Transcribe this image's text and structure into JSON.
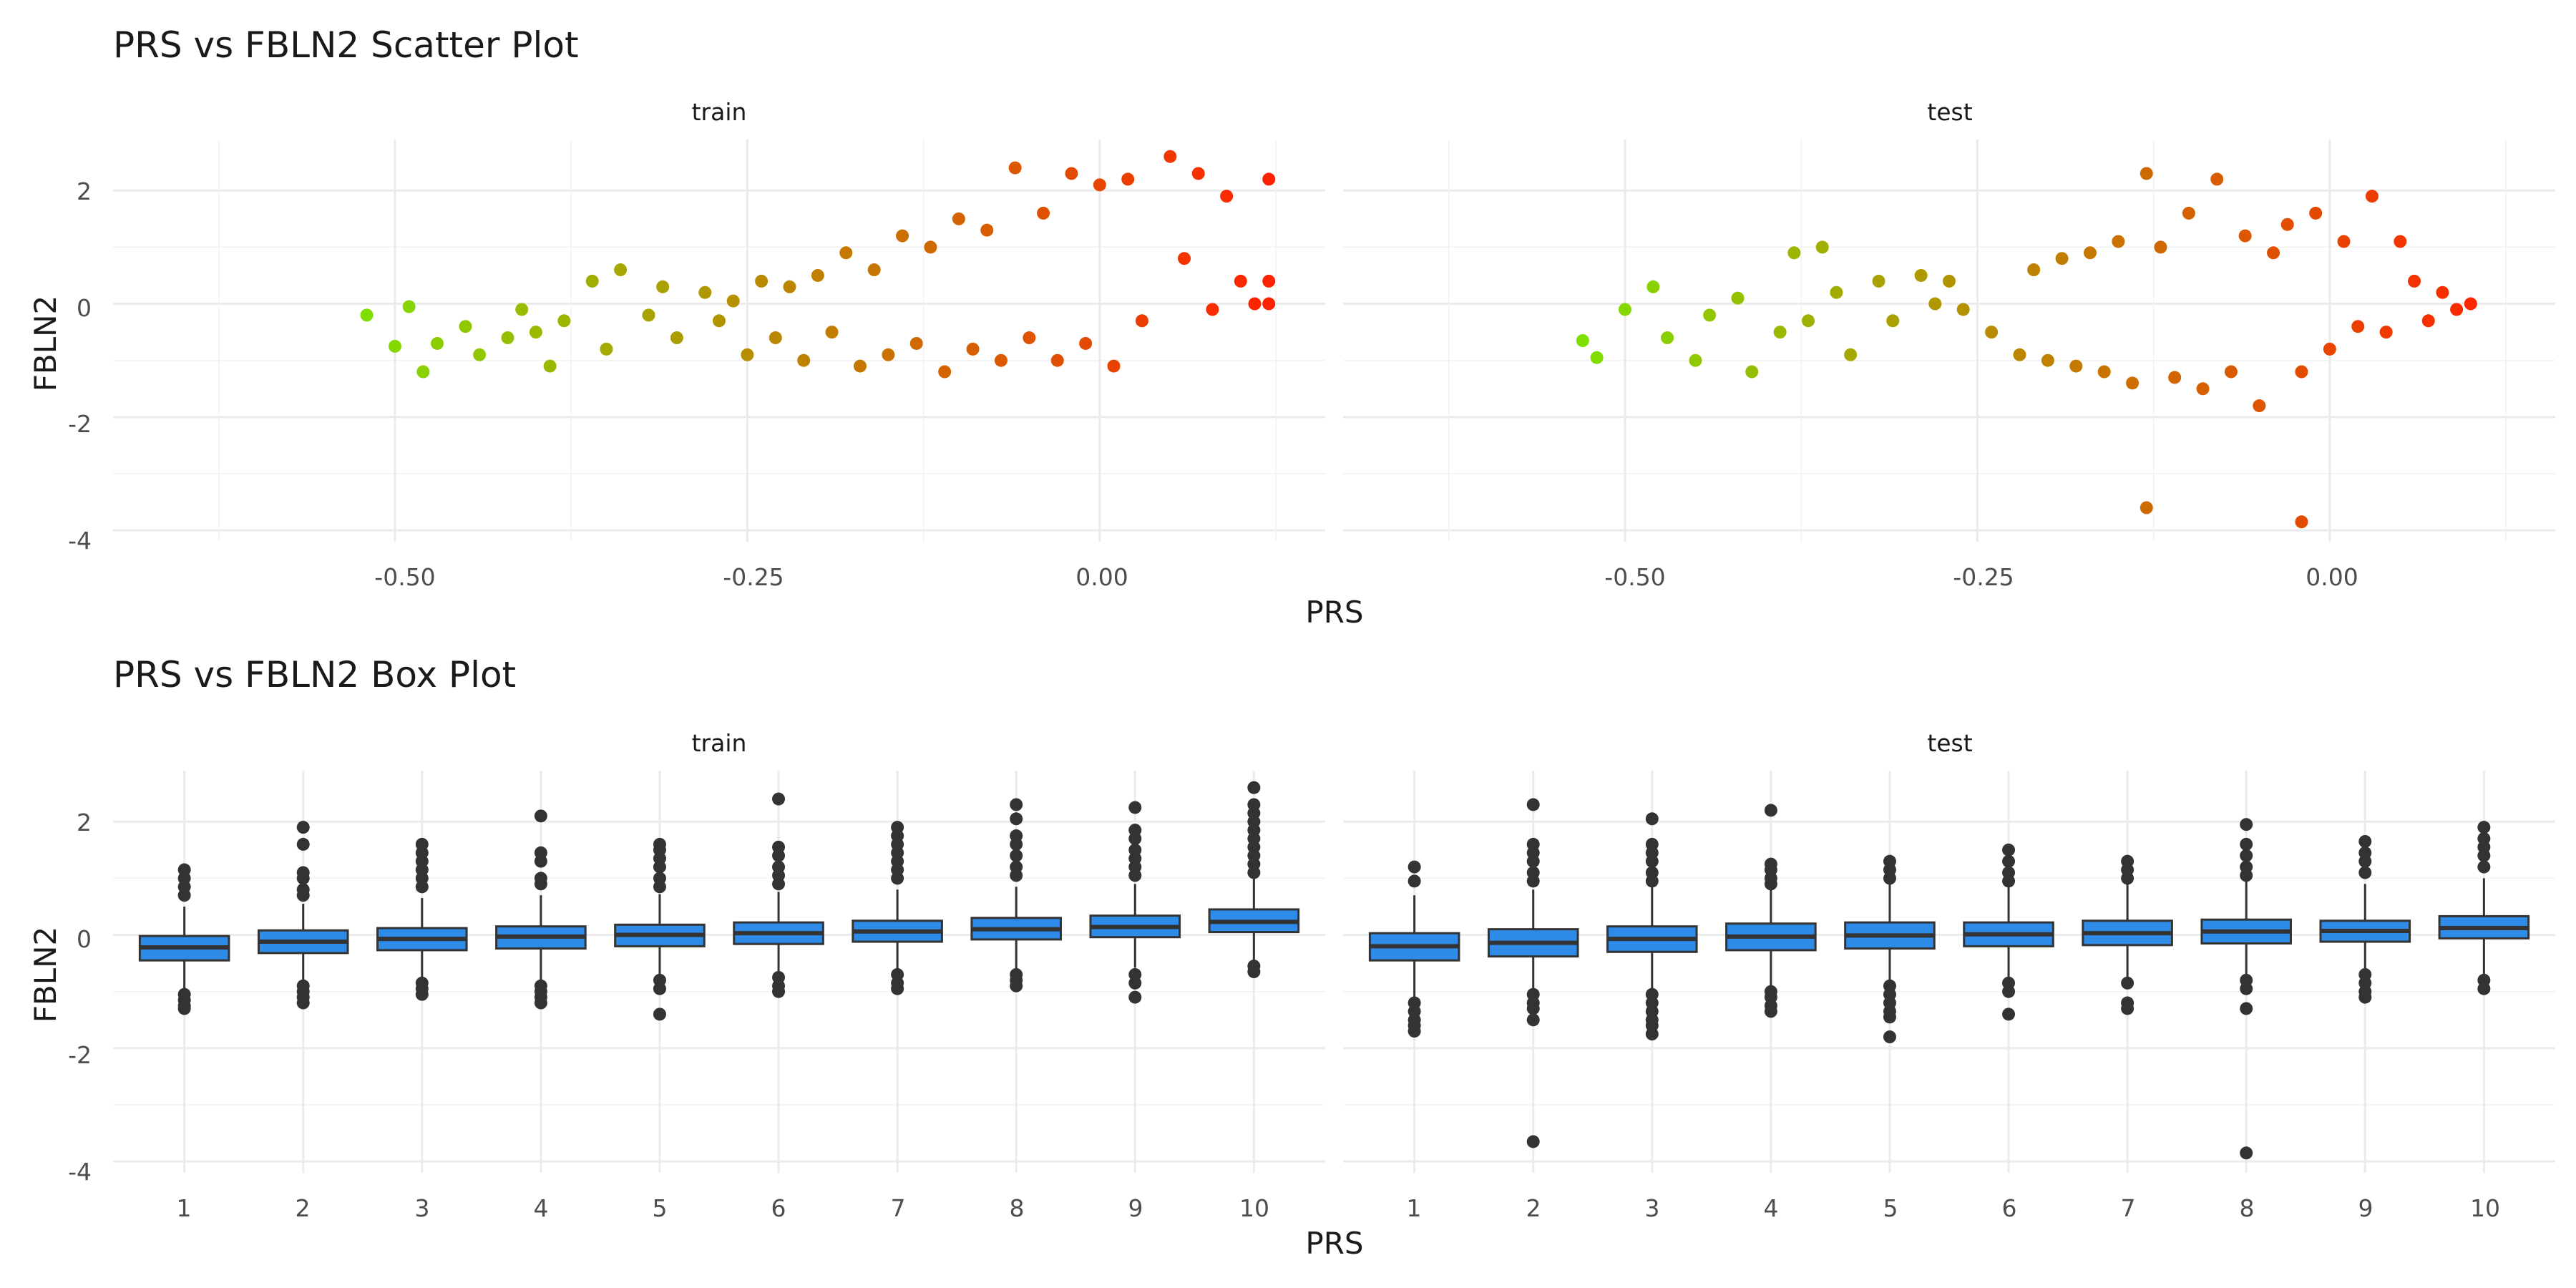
{
  "scatter": {
    "title": "PRS vs FBLN2 Scatter Plot",
    "xlabel": "PRS",
    "ylabel": "FBLN2",
    "facets": [
      "train",
      "test"
    ],
    "xticks": [
      "-0.50",
      "-0.25",
      "0.00"
    ],
    "yticks": [
      "2",
      "0",
      "-2",
      "-4"
    ]
  },
  "box": {
    "title": "PRS vs FBLN2 Box Plot",
    "xlabel": "PRS",
    "ylabel": "FBLN2",
    "facets": [
      "train",
      "test"
    ],
    "xticks": [
      "1",
      "2",
      "3",
      "4",
      "5",
      "6",
      "7",
      "8",
      "9",
      "10"
    ],
    "yticks": [
      "2",
      "0",
      "-2",
      "-4"
    ]
  },
  "chart_data": [
    {
      "type": "scatter",
      "title": "PRS vs FBLN2 Scatter Plot",
      "xlabel": "PRS",
      "ylabel": "FBLN2",
      "facets": [
        "train",
        "test"
      ],
      "xlim": [
        -0.7,
        0.16
      ],
      "ylim": [
        -4.2,
        2.9
      ],
      "color_scale": {
        "low": "#7FE000",
        "high": "#FF2200",
        "mapped_to": "PRS"
      },
      "grid": true,
      "points": {
        "train": [
          [
            -0.52,
            -0.2
          ],
          [
            -0.5,
            -0.75
          ],
          [
            -0.49,
            -0.05
          ],
          [
            -0.48,
            -1.2
          ],
          [
            -0.47,
            -0.7
          ],
          [
            -0.45,
            -0.4
          ],
          [
            -0.44,
            -0.9
          ],
          [
            -0.42,
            -0.6
          ],
          [
            -0.41,
            -0.1
          ],
          [
            -0.4,
            -0.5
          ],
          [
            -0.39,
            -1.1
          ],
          [
            -0.38,
            -0.3
          ],
          [
            -0.36,
            0.4
          ],
          [
            -0.35,
            -0.8
          ],
          [
            -0.34,
            0.6
          ],
          [
            -0.32,
            -0.2
          ],
          [
            -0.31,
            0.3
          ],
          [
            -0.3,
            -0.6
          ],
          [
            -0.28,
            0.2
          ],
          [
            -0.27,
            -0.3
          ],
          [
            -0.26,
            0.05
          ],
          [
            -0.25,
            -0.9
          ],
          [
            -0.24,
            0.4
          ],
          [
            -0.23,
            -0.6
          ],
          [
            -0.22,
            0.3
          ],
          [
            -0.21,
            -1.0
          ],
          [
            -0.2,
            0.5
          ],
          [
            -0.19,
            -0.5
          ],
          [
            -0.18,
            0.9
          ],
          [
            -0.17,
            -1.1
          ],
          [
            -0.16,
            0.6
          ],
          [
            -0.15,
            -0.9
          ],
          [
            -0.14,
            1.2
          ],
          [
            -0.13,
            -0.7
          ],
          [
            -0.12,
            1.0
          ],
          [
            -0.11,
            -1.2
          ],
          [
            -0.1,
            1.5
          ],
          [
            -0.09,
            -0.8
          ],
          [
            -0.08,
            1.3
          ],
          [
            -0.07,
            -1.0
          ],
          [
            -0.06,
            2.4
          ],
          [
            -0.05,
            -0.6
          ],
          [
            -0.04,
            1.6
          ],
          [
            -0.03,
            -1.0
          ],
          [
            -0.02,
            2.3
          ],
          [
            -0.01,
            -0.7
          ],
          [
            0.0,
            2.1
          ],
          [
            0.01,
            -1.1
          ],
          [
            0.02,
            2.2
          ],
          [
            0.03,
            -0.3
          ],
          [
            0.05,
            2.6
          ],
          [
            0.06,
            0.8
          ],
          [
            0.07,
            2.3
          ],
          [
            0.08,
            -0.1
          ],
          [
            0.09,
            1.9
          ],
          [
            0.1,
            0.4
          ],
          [
            0.11,
            0.0
          ],
          [
            0.12,
            2.2
          ],
          [
            0.12,
            0.4
          ],
          [
            0.12,
            0.0
          ]
        ],
        "test": [
          [
            -0.53,
            -0.65
          ],
          [
            -0.52,
            -0.95
          ],
          [
            -0.5,
            -0.1
          ],
          [
            -0.48,
            0.3
          ],
          [
            -0.47,
            -0.6
          ],
          [
            -0.45,
            -1.0
          ],
          [
            -0.44,
            -0.2
          ],
          [
            -0.42,
            0.1
          ],
          [
            -0.41,
            -1.2
          ],
          [
            -0.39,
            -0.5
          ],
          [
            -0.38,
            0.9
          ],
          [
            -0.37,
            -0.3
          ],
          [
            -0.36,
            1.0
          ],
          [
            -0.35,
            0.2
          ],
          [
            -0.34,
            -0.9
          ],
          [
            -0.32,
            0.4
          ],
          [
            -0.31,
            -0.3
          ],
          [
            -0.29,
            0.5
          ],
          [
            -0.28,
            0.0
          ],
          [
            -0.27,
            0.4
          ],
          [
            -0.26,
            -0.1
          ],
          [
            -0.24,
            -0.5
          ],
          [
            -0.22,
            -0.9
          ],
          [
            -0.21,
            0.6
          ],
          [
            -0.2,
            -1.0
          ],
          [
            -0.19,
            0.8
          ],
          [
            -0.18,
            -1.1
          ],
          [
            -0.17,
            0.9
          ],
          [
            -0.16,
            -1.2
          ],
          [
            -0.15,
            1.1
          ],
          [
            -0.14,
            -1.4
          ],
          [
            -0.13,
            2.3
          ],
          [
            -0.13,
            -3.6
          ],
          [
            -0.12,
            1.0
          ],
          [
            -0.11,
            -1.3
          ],
          [
            -0.1,
            1.6
          ],
          [
            -0.09,
            -1.5
          ],
          [
            -0.08,
            2.2
          ],
          [
            -0.07,
            -1.2
          ],
          [
            -0.06,
            1.2
          ],
          [
            -0.05,
            -1.8
          ],
          [
            -0.04,
            0.9
          ],
          [
            -0.03,
            1.4
          ],
          [
            -0.02,
            -1.2
          ],
          [
            -0.02,
            -3.85
          ],
          [
            -0.01,
            1.6
          ],
          [
            0.0,
            -0.8
          ],
          [
            0.01,
            1.1
          ],
          [
            0.02,
            -0.4
          ],
          [
            0.03,
            1.9
          ],
          [
            0.04,
            -0.5
          ],
          [
            0.05,
            1.1
          ],
          [
            0.06,
            0.4
          ],
          [
            0.07,
            -0.3
          ],
          [
            0.08,
            0.2
          ],
          [
            0.09,
            -0.1
          ],
          [
            0.1,
            0.0
          ]
        ]
      }
    },
    {
      "type": "box",
      "title": "PRS vs FBLN2 Box Plot",
      "xlabel": "PRS",
      "ylabel": "FBLN2",
      "facets": [
        "train",
        "test"
      ],
      "categories": [
        "1",
        "2",
        "3",
        "4",
        "5",
        "6",
        "7",
        "8",
        "9",
        "10"
      ],
      "ylim": [
        -4.2,
        2.9
      ],
      "fill": "#2E8BE8",
      "grid": true,
      "boxes": {
        "train": [
          {
            "q1": -0.45,
            "median": -0.22,
            "q3": -0.02,
            "whisker_low": -0.95,
            "whisker_high": 0.5,
            "outliers": [
              1.15,
              1.0,
              0.85,
              0.7,
              -1.05,
              -1.15,
              -1.25,
              -1.3
            ]
          },
          {
            "q1": -0.32,
            "median": -0.12,
            "q3": 0.08,
            "whisker_low": -0.85,
            "whisker_high": 0.55,
            "outliers": [
              1.9,
              1.6,
              1.1,
              1.0,
              0.8,
              0.7,
              -0.9,
              -1.0,
              -1.1,
              -1.2
            ]
          },
          {
            "q1": -0.27,
            "median": -0.07,
            "q3": 0.12,
            "whisker_low": -0.8,
            "whisker_high": 0.65,
            "outliers": [
              1.6,
              1.45,
              1.3,
              1.15,
              1.0,
              0.85,
              -0.85,
              -0.95,
              -1.05
            ]
          },
          {
            "q1": -0.24,
            "median": -0.03,
            "q3": 0.15,
            "whisker_low": -0.8,
            "whisker_high": 0.7,
            "outliers": [
              2.1,
              1.45,
              1.3,
              1.0,
              0.9,
              -0.9,
              -1.0,
              -1.1,
              -1.2
            ]
          },
          {
            "q1": -0.2,
            "median": 0.0,
            "q3": 0.18,
            "whisker_low": -0.75,
            "whisker_high": 0.72,
            "outliers": [
              1.6,
              1.5,
              1.35,
              1.2,
              1.0,
              0.85,
              -0.8,
              -0.95,
              -1.4
            ]
          },
          {
            "q1": -0.16,
            "median": 0.03,
            "q3": 0.22,
            "whisker_low": -0.7,
            "whisker_high": 0.76,
            "outliers": [
              2.4,
              1.55,
              1.4,
              1.2,
              1.05,
              0.9,
              -0.75,
              -0.9,
              -1.0
            ]
          },
          {
            "q1": -0.12,
            "median": 0.06,
            "q3": 0.25,
            "whisker_low": -0.65,
            "whisker_high": 0.8,
            "outliers": [
              1.9,
              1.75,
              1.6,
              1.45,
              1.3,
              1.15,
              1.0,
              -0.7,
              -0.85,
              -0.95
            ]
          },
          {
            "q1": -0.08,
            "median": 0.1,
            "q3": 0.3,
            "whisker_low": -0.62,
            "whisker_high": 0.85,
            "outliers": [
              2.3,
              2.05,
              1.75,
              1.6,
              1.4,
              1.2,
              1.05,
              -0.7,
              -0.8,
              -0.9
            ]
          },
          {
            "q1": -0.04,
            "median": 0.14,
            "q3": 0.34,
            "whisker_low": -0.58,
            "whisker_high": 0.9,
            "outliers": [
              2.25,
              1.85,
              1.7,
              1.5,
              1.35,
              1.2,
              1.05,
              -0.7,
              -0.85,
              -1.1
            ]
          },
          {
            "q1": 0.05,
            "median": 0.23,
            "q3": 0.45,
            "whisker_low": -0.48,
            "whisker_high": 1.0,
            "outliers": [
              2.6,
              2.3,
              2.15,
              2.0,
              1.85,
              1.7,
              1.55,
              1.4,
              1.25,
              1.1,
              -0.55,
              -0.65
            ]
          }
        ],
        "test": [
          {
            "q1": -0.45,
            "median": -0.2,
            "q3": 0.03,
            "whisker_low": -1.1,
            "whisker_high": 0.7,
            "outliers": [
              1.2,
              0.95,
              -1.2,
              -1.35,
              -1.5,
              -1.6,
              -1.7
            ]
          },
          {
            "q1": -0.38,
            "median": -0.14,
            "q3": 0.1,
            "whisker_low": -0.95,
            "whisker_high": 0.8,
            "outliers": [
              2.3,
              1.6,
              1.45,
              1.3,
              1.1,
              0.95,
              -1.05,
              -1.2,
              -1.3,
              -1.5,
              -3.65
            ]
          },
          {
            "q1": -0.3,
            "median": -0.07,
            "q3": 0.15,
            "whisker_low": -0.95,
            "whisker_high": 0.85,
            "outliers": [
              2.05,
              1.6,
              1.45,
              1.3,
              1.1,
              0.95,
              -1.05,
              -1.2,
              -1.35,
              -1.5,
              -1.6,
              -1.75
            ]
          },
          {
            "q1": -0.27,
            "median": -0.03,
            "q3": 0.2,
            "whisker_low": -0.9,
            "whisker_high": 0.85,
            "outliers": [
              2.2,
              1.25,
              1.15,
              1.0,
              0.9,
              -1.0,
              -1.1,
              -1.25,
              -1.35
            ]
          },
          {
            "q1": -0.24,
            "median": -0.01,
            "q3": 0.22,
            "whisker_low": -0.85,
            "whisker_high": 0.9,
            "outliers": [
              1.3,
              1.15,
              1.0,
              -0.9,
              -1.05,
              -1.2,
              -1.35,
              -1.45,
              -1.8
            ]
          },
          {
            "q1": -0.2,
            "median": 0.01,
            "q3": 0.22,
            "whisker_low": -0.8,
            "whisker_high": 0.9,
            "outliers": [
              1.5,
              1.3,
              1.1,
              0.95,
              -0.85,
              -1.0,
              -1.4
            ]
          },
          {
            "q1": -0.18,
            "median": 0.03,
            "q3": 0.25,
            "whisker_low": -0.8,
            "whisker_high": 0.9,
            "outliers": [
              1.3,
              1.15,
              1.0,
              -0.85,
              -1.2,
              -1.3
            ]
          },
          {
            "q1": -0.15,
            "median": 0.06,
            "q3": 0.27,
            "whisker_low": -0.75,
            "whisker_high": 0.95,
            "outliers": [
              1.95,
              1.6,
              1.4,
              1.2,
              1.05,
              -0.8,
              -0.95,
              -1.3,
              -3.85
            ]
          },
          {
            "q1": -0.12,
            "median": 0.07,
            "q3": 0.25,
            "whisker_low": -0.75,
            "whisker_high": 0.9,
            "outliers": [
              1.65,
              1.45,
              1.3,
              1.1,
              -0.7,
              -0.85,
              -1.0,
              -1.1
            ]
          },
          {
            "q1": -0.06,
            "median": 0.12,
            "q3": 0.33,
            "whisker_low": -0.7,
            "whisker_high": 1.0,
            "outliers": [
              1.9,
              1.7,
              1.55,
              1.4,
              1.2,
              -0.8,
              -0.95
            ]
          }
        ]
      }
    }
  ]
}
